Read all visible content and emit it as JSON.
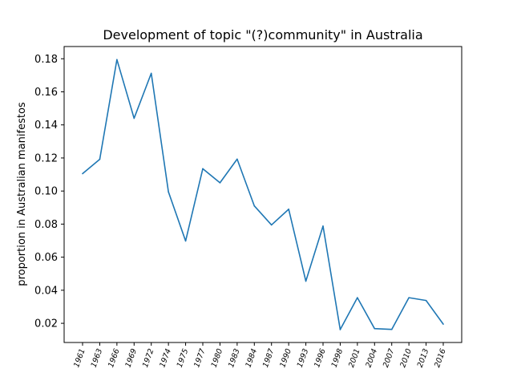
{
  "chart_data": {
    "type": "line",
    "title": "Development of topic \"(?)community\" in Australia",
    "xlabel": "",
    "ylabel": "proportion in Australian manifestos",
    "categories": [
      "1961",
      "1963",
      "1966",
      "1969",
      "1972",
      "1974",
      "1975",
      "1977",
      "1980",
      "1983",
      "1984",
      "1987",
      "1990",
      "1993",
      "1996",
      "1998",
      "2001",
      "2004",
      "2007",
      "2010",
      "2013",
      "2016"
    ],
    "series": [
      {
        "color": "#1f77b4",
        "values": [
          0.1105,
          0.1192,
          0.1795,
          0.144,
          0.1712,
          0.0995,
          0.0698,
          0.1135,
          0.105,
          0.1193,
          0.091,
          0.0795,
          0.089,
          0.0455,
          0.0788,
          0.0162,
          0.0355,
          0.0168,
          0.0163,
          0.0355,
          0.0338,
          0.0195
        ]
      }
    ],
    "ylim": [
      0.0084,
      0.1874
    ],
    "yticks": [
      0.02,
      0.04,
      0.06,
      0.08,
      0.1,
      0.12,
      0.14,
      0.16,
      0.18
    ],
    "ytick_labels": [
      "0.02",
      "0.04",
      "0.06",
      "0.08",
      "0.10",
      "0.12",
      "0.14",
      "0.16",
      "0.18"
    ],
    "grid": false,
    "legend": "none"
  }
}
